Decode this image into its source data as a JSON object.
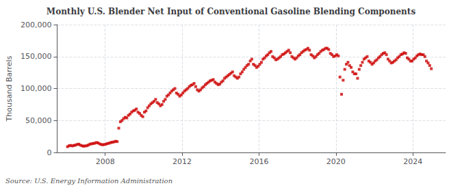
{
  "chart_data": {
    "type": "scatter",
    "title": "Monthly U.S. Blender Net Input of Conventional Gasoline Blending Components",
    "ylabel": "Thousand Barrels",
    "annotation": "Source: U.S. Energy Information Administration",
    "color": "#cc0000",
    "marker": "square",
    "grid": true,
    "xlim": [
      2005.5,
      2025.7
    ],
    "xticks": [
      2008,
      2012,
      2016,
      2020,
      2024
    ],
    "ylim": [
      0,
      200000
    ],
    "yticks": [
      0,
      {
        "value": 50000,
        "label": "50,000"
      },
      {
        "value": 100000,
        "label": "100,000"
      },
      {
        "value": 150000,
        "label": "150,000"
      },
      {
        "value": 200000,
        "label": "200,000"
      }
    ],
    "x": [
      2006.041667,
      2006.125,
      2006.208333,
      2006.291667,
      2006.375,
      2006.458333,
      2006.541667,
      2006.625,
      2006.708333,
      2006.791667,
      2006.875,
      2006.958333,
      2007.041667,
      2007.125,
      2007.208333,
      2007.291667,
      2007.375,
      2007.458333,
      2007.541667,
      2007.625,
      2007.708333,
      2007.791667,
      2007.875,
      2007.958333,
      2008.041667,
      2008.125,
      2008.208333,
      2008.291667,
      2008.375,
      2008.458333,
      2008.541667,
      2008.625,
      2008.708333,
      2008.791667,
      2008.875,
      2008.958333,
      2009.041667,
      2009.125,
      2009.208333,
      2009.291667,
      2009.375,
      2009.458333,
      2009.541667,
      2009.625,
      2009.708333,
      2009.791667,
      2009.875,
      2009.958333,
      2010.041667,
      2010.125,
      2010.208333,
      2010.291667,
      2010.375,
      2010.458333,
      2010.541667,
      2010.625,
      2010.708333,
      2010.791667,
      2010.875,
      2010.958333,
      2011.041667,
      2011.125,
      2011.208333,
      2011.291667,
      2011.375,
      2011.458333,
      2011.541667,
      2011.625,
      2011.708333,
      2011.791667,
      2011.875,
      2011.958333,
      2012.041667,
      2012.125,
      2012.208333,
      2012.291667,
      2012.375,
      2012.458333,
      2012.541667,
      2012.625,
      2012.708333,
      2012.791667,
      2012.875,
      2012.958333,
      2013.041667,
      2013.125,
      2013.208333,
      2013.291667,
      2013.375,
      2013.458333,
      2013.541667,
      2013.625,
      2013.708333,
      2013.791667,
      2013.875,
      2013.958333,
      2014.041667,
      2014.125,
      2014.208333,
      2014.291667,
      2014.375,
      2014.458333,
      2014.541667,
      2014.625,
      2014.708333,
      2014.791667,
      2014.875,
      2014.958333,
      2015.041667,
      2015.125,
      2015.208333,
      2015.291667,
      2015.375,
      2015.458333,
      2015.541667,
      2015.625,
      2015.708333,
      2015.791667,
      2015.875,
      2015.958333,
      2016.041667,
      2016.125,
      2016.208333,
      2016.291667,
      2016.375,
      2016.458333,
      2016.541667,
      2016.625,
      2016.708333,
      2016.791667,
      2016.875,
      2016.958333,
      2017.041667,
      2017.125,
      2017.208333,
      2017.291667,
      2017.375,
      2017.458333,
      2017.541667,
      2017.625,
      2017.708333,
      2017.791667,
      2017.875,
      2017.958333,
      2018.041667,
      2018.125,
      2018.208333,
      2018.291667,
      2018.375,
      2018.458333,
      2018.541667,
      2018.625,
      2018.708333,
      2018.791667,
      2018.875,
      2018.958333,
      2019.041667,
      2019.125,
      2019.208333,
      2019.291667,
      2019.375,
      2019.458333,
      2019.541667,
      2019.625,
      2019.708333,
      2019.791667,
      2019.875,
      2019.958333,
      2020.041667,
      2020.125,
      2020.208333,
      2020.291667,
      2020.375,
      2020.458333,
      2020.541667,
      2020.625,
      2020.708333,
      2020.791667,
      2020.875,
      2020.958333,
      2021.041667,
      2021.125,
      2021.208333,
      2021.291667,
      2021.375,
      2021.458333,
      2021.541667,
      2021.625,
      2021.708333,
      2021.791667,
      2021.875,
      2021.958333,
      2022.041667,
      2022.125,
      2022.208333,
      2022.291667,
      2022.375,
      2022.458333,
      2022.541667,
      2022.625,
      2022.708333,
      2022.791667,
      2022.875,
      2022.958333,
      2023.041667,
      2023.125,
      2023.208333,
      2023.291667,
      2023.375,
      2023.458333,
      2023.541667,
      2023.625,
      2023.708333,
      2023.791667,
      2023.875,
      2023.958333,
      2024.041667,
      2024.125,
      2024.208333,
      2024.291667,
      2024.375,
      2024.458333,
      2024.541667,
      2024.625,
      2024.708333,
      2024.791667,
      2024.875,
      2024.958333
    ],
    "values": [
      9000,
      10500,
      11000,
      10200,
      11000,
      11500,
      12500,
      13000,
      11500,
      10500,
      9800,
      10200,
      10500,
      11500,
      13000,
      13500,
      14000,
      14500,
      15500,
      15000,
      13500,
      12500,
      12000,
      12500,
      13000,
      14000,
      14500,
      15500,
      16000,
      16500,
      17500,
      17000,
      38000,
      48000,
      50000,
      53000,
      55000,
      54000,
      58000,
      60000,
      63000,
      65000,
      66000,
      68000,
      63000,
      61000,
      58000,
      56000,
      63000,
      65000,
      70000,
      73000,
      76000,
      78000,
      80000,
      83000,
      78000,
      76000,
      73000,
      75000,
      80000,
      83000,
      88000,
      90000,
      93000,
      96000,
      98000,
      100000,
      93000,
      91000,
      88000,
      90000,
      93000,
      96000,
      98000,
      100000,
      103000,
      105000,
      106000,
      108000,
      103000,
      98000,
      96000,
      98000,
      101000,
      103000,
      106000,
      108000,
      110000,
      112000,
      113000,
      114000,
      110000,
      108000,
      106000,
      107000,
      110000,
      112000,
      116000,
      118000,
      120000,
      122000,
      124000,
      126000,
      120000,
      118000,
      116000,
      118000,
      123000,
      126000,
      130000,
      133000,
      136000,
      138000,
      143000,
      146000,
      138000,
      136000,
      133000,
      135000,
      138000,
      141000,
      146000,
      148000,
      151000,
      153000,
      156000,
      158000,
      150000,
      148000,
      145000,
      146000,
      148000,
      150000,
      153000,
      154000,
      156000,
      158000,
      160000,
      156000,
      150000,
      148000,
      146000,
      148000,
      151000,
      153000,
      156000,
      158000,
      160000,
      161000,
      163000,
      160000,
      153000,
      151000,
      148000,
      150000,
      153000,
      155000,
      158000,
      160000,
      161000,
      163000,
      163000,
      161000,
      155000,
      153000,
      150000,
      151000,
      153000,
      151000,
      118000,
      91000,
      113000,
      130000,
      138000,
      141000,
      136000,
      133000,
      126000,
      123000,
      123000,
      116000,
      130000,
      136000,
      141000,
      146000,
      148000,
      150000,
      143000,
      141000,
      138000,
      140000,
      143000,
      145000,
      148000,
      150000,
      153000,
      155000,
      156000,
      153000,
      146000,
      143000,
      140000,
      141000,
      143000,
      145000,
      148000,
      150000,
      153000,
      154000,
      156000,
      155000,
      148000,
      146000,
      143000,
      143000,
      146000,
      148000,
      151000,
      153000,
      154000,
      153000,
      153000,
      150000,
      143000,
      140000,
      136000,
      131000
    ]
  }
}
